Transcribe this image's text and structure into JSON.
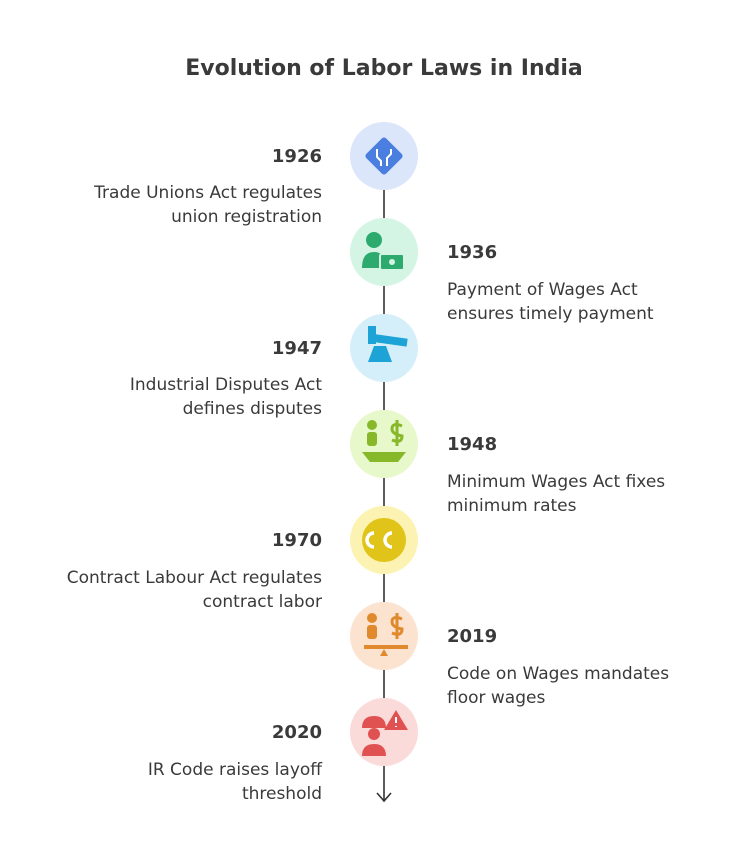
{
  "title": "Evolution of Labor Laws in India",
  "events": [
    {
      "year": "1926",
      "description": [
        "Trade Unions Act regulates",
        "union registration"
      ]
    },
    {
      "year": "1936",
      "description": [
        "Payment of Wages Act",
        "ensures timely payment"
      ]
    },
    {
      "year": "1947",
      "description": [
        "Industrial Disputes Act",
        "defines disputes"
      ]
    },
    {
      "year": "1948",
      "description": [
        "Minimum Wages Act fixes",
        "minimum rates"
      ]
    },
    {
      "year": "1970",
      "description": [
        "Contract Labour Act regulates",
        "contract labor"
      ]
    },
    {
      "year": "2019",
      "description": [
        "Code on Wages mandates",
        "floor wages"
      ]
    },
    {
      "year": "2020",
      "description": [
        "IR Code raises layoff",
        "threshold"
      ]
    }
  ]
}
